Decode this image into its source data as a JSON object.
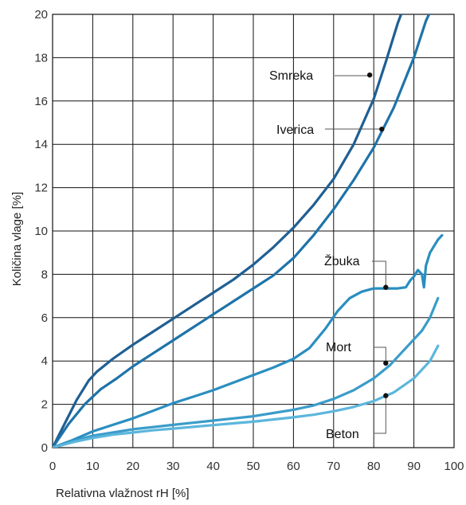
{
  "chart_data": {
    "type": "line",
    "title": "",
    "xlabel": "Relativna vlažnost rH [%]",
    "ylabel": "Količina vlage [%]",
    "xlim": [
      0,
      100
    ],
    "ylim": [
      0,
      20
    ],
    "xticks": [
      0,
      10,
      20,
      30,
      40,
      50,
      60,
      70,
      80,
      90,
      100
    ],
    "yticks": [
      0,
      2,
      4,
      6,
      8,
      10,
      12,
      14,
      16,
      18,
      20
    ],
    "grid": true,
    "series": [
      {
        "name": "Smreka",
        "color": "#1f5f93",
        "points": [
          [
            0,
            0
          ],
          [
            3,
            1.1
          ],
          [
            6,
            2.2
          ],
          [
            9,
            3.1
          ],
          [
            11,
            3.5
          ],
          [
            15,
            4.1
          ],
          [
            20,
            4.75
          ],
          [
            25,
            5.35
          ],
          [
            30,
            5.95
          ],
          [
            35,
            6.55
          ],
          [
            40,
            7.15
          ],
          [
            45,
            7.75
          ],
          [
            50,
            8.45
          ],
          [
            55,
            9.25
          ],
          [
            60,
            10.15
          ],
          [
            65,
            11.2
          ],
          [
            70,
            12.4
          ],
          [
            75,
            14.0
          ],
          [
            80,
            16.1
          ],
          [
            83,
            17.8
          ],
          [
            86,
            19.6
          ],
          [
            87,
            20.1
          ]
        ],
        "marker": [
          79,
          17.2
        ]
      },
      {
        "name": "Iverica",
        "color": "#1e73a8",
        "points": [
          [
            0,
            0
          ],
          [
            4,
            1.1
          ],
          [
            8,
            2.0
          ],
          [
            12,
            2.7
          ],
          [
            16,
            3.2
          ],
          [
            20,
            3.75
          ],
          [
            25,
            4.35
          ],
          [
            30,
            4.95
          ],
          [
            35,
            5.55
          ],
          [
            40,
            6.15
          ],
          [
            45,
            6.75
          ],
          [
            50,
            7.35
          ],
          [
            55,
            7.95
          ],
          [
            60,
            8.75
          ],
          [
            65,
            9.8
          ],
          [
            70,
            11.0
          ],
          [
            75,
            12.35
          ],
          [
            80,
            13.85
          ],
          [
            85,
            15.7
          ],
          [
            90,
            18.0
          ],
          [
            93,
            19.7
          ],
          [
            94,
            20.1
          ]
        ],
        "marker": [
          82,
          14.7
        ]
      },
      {
        "name": "Žbuka",
        "color": "#2a8ec0",
        "points": [
          [
            0,
            0
          ],
          [
            5,
            0.35
          ],
          [
            10,
            0.75
          ],
          [
            15,
            1.05
          ],
          [
            20,
            1.35
          ],
          [
            25,
            1.7
          ],
          [
            30,
            2.05
          ],
          [
            35,
            2.35
          ],
          [
            40,
            2.65
          ],
          [
            45,
            3.0
          ],
          [
            50,
            3.35
          ],
          [
            55,
            3.7
          ],
          [
            60,
            4.1
          ],
          [
            64,
            4.6
          ],
          [
            68,
            5.5
          ],
          [
            71,
            6.3
          ],
          [
            74,
            6.9
          ],
          [
            77,
            7.2
          ],
          [
            80,
            7.35
          ],
          [
            83,
            7.35
          ],
          [
            86,
            7.35
          ],
          [
            88,
            7.4
          ],
          [
            89,
            7.7
          ],
          [
            90,
            7.9
          ],
          [
            91,
            8.2
          ],
          [
            92,
            8.0
          ],
          [
            92.5,
            7.4
          ],
          [
            93,
            8.4
          ],
          [
            94,
            9.0
          ],
          [
            96,
            9.6
          ],
          [
            97,
            9.8
          ]
        ],
        "marker": [
          83,
          7.4
        ]
      },
      {
        "name": "Mort",
        "color": "#3a9cc9",
        "points": [
          [
            0,
            0
          ],
          [
            5,
            0.3
          ],
          [
            10,
            0.55
          ],
          [
            15,
            0.7
          ],
          [
            20,
            0.85
          ],
          [
            25,
            0.95
          ],
          [
            30,
            1.05
          ],
          [
            35,
            1.15
          ],
          [
            40,
            1.25
          ],
          [
            45,
            1.35
          ],
          [
            50,
            1.45
          ],
          [
            55,
            1.6
          ],
          [
            60,
            1.75
          ],
          [
            65,
            1.95
          ],
          [
            70,
            2.25
          ],
          [
            75,
            2.65
          ],
          [
            80,
            3.2
          ],
          [
            84,
            3.8
          ],
          [
            88,
            4.6
          ],
          [
            92,
            5.4
          ],
          [
            94,
            6.0
          ],
          [
            96,
            6.9
          ]
        ],
        "marker": [
          83,
          3.9
        ]
      },
      {
        "name": "Beton",
        "color": "#5cb6dc",
        "points": [
          [
            0,
            0
          ],
          [
            5,
            0.25
          ],
          [
            10,
            0.45
          ],
          [
            15,
            0.6
          ],
          [
            20,
            0.7
          ],
          [
            25,
            0.8
          ],
          [
            30,
            0.88
          ],
          [
            35,
            0.96
          ],
          [
            40,
            1.04
          ],
          [
            45,
            1.12
          ],
          [
            50,
            1.2
          ],
          [
            55,
            1.3
          ],
          [
            60,
            1.4
          ],
          [
            65,
            1.52
          ],
          [
            70,
            1.68
          ],
          [
            75,
            1.88
          ],
          [
            80,
            2.15
          ],
          [
            85,
            2.55
          ],
          [
            90,
            3.2
          ],
          [
            94,
            4.0
          ],
          [
            96,
            4.7
          ]
        ],
        "marker": [
          83,
          2.4
        ]
      }
    ]
  }
}
